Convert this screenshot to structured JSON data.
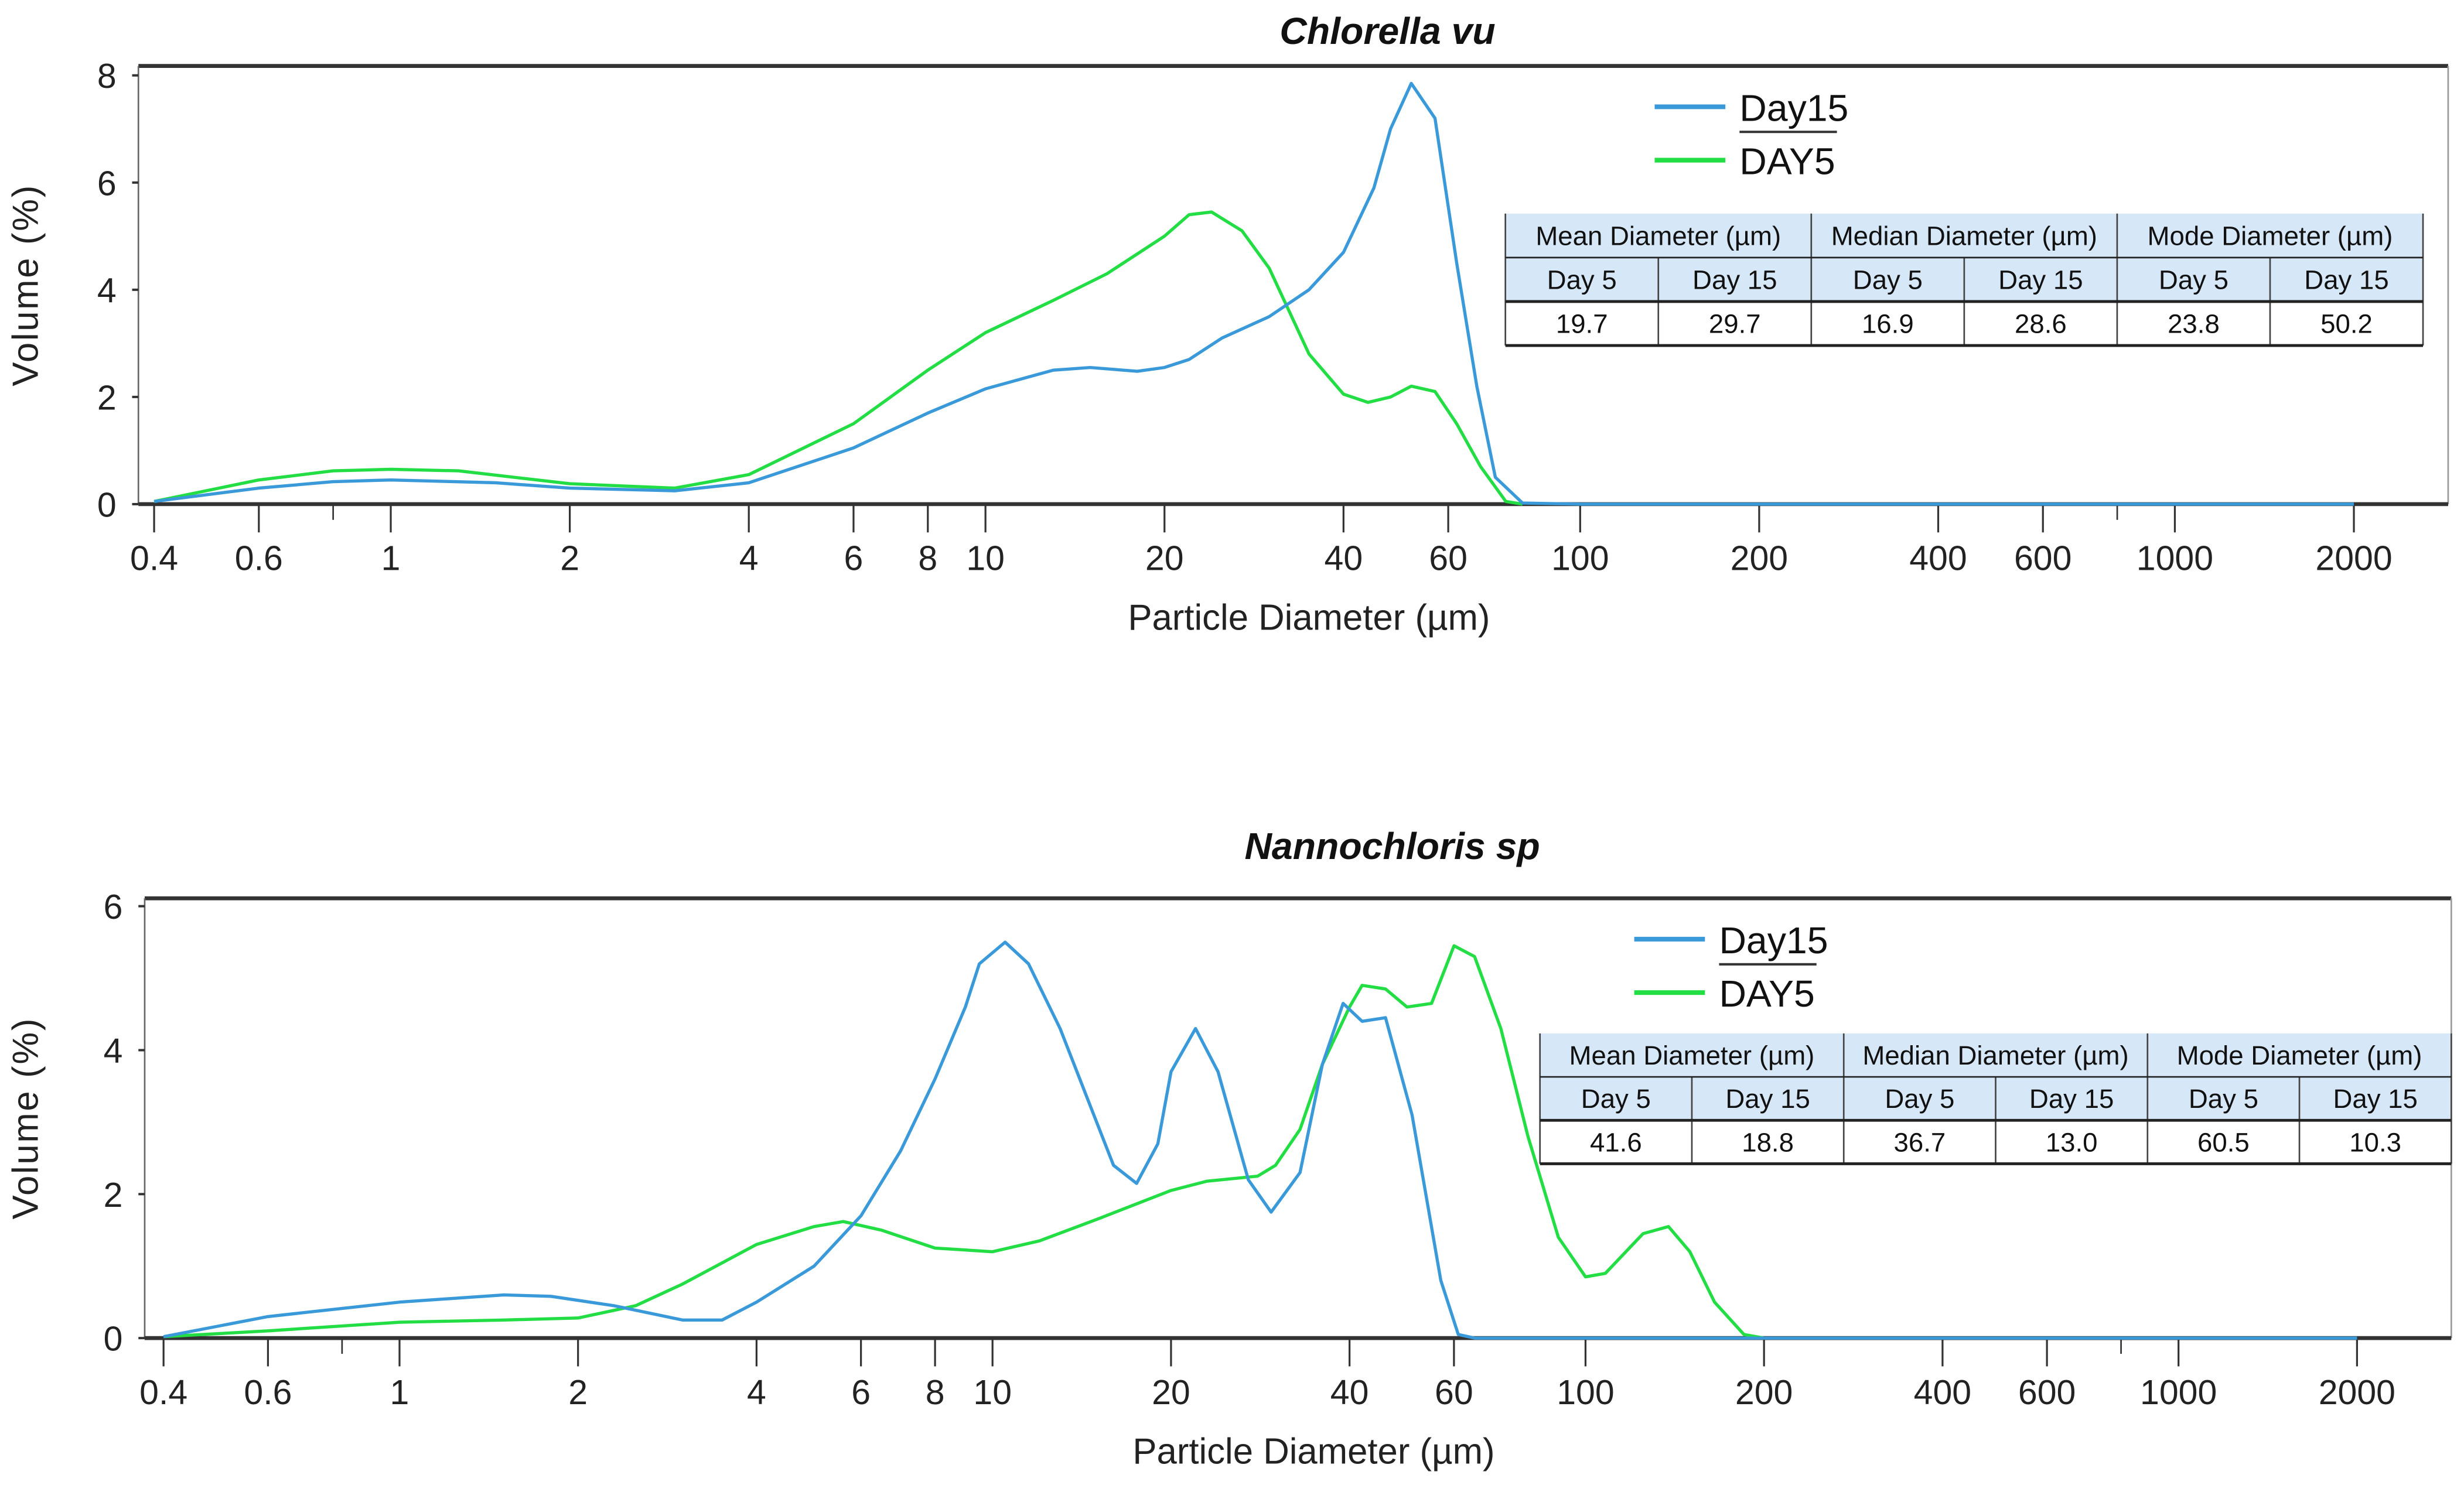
{
  "colors": {
    "day15": "#3a9ad9",
    "day5": "#22dd44",
    "table_header_bg": "#d6e8f7",
    "axis": "#333333"
  },
  "chart_data": [
    {
      "type": "line",
      "title": "Chlorella vu",
      "xlabel": "Particle Diameter (µm)",
      "ylabel": "Volume (%)",
      "xscale": "log",
      "xlim": [
        0.4,
        2000
      ],
      "ylim": [
        0,
        8
      ],
      "xticks": [
        "0.4",
        "0.6",
        "1",
        "2",
        "4",
        "6",
        "8",
        "10",
        "20",
        "40",
        "60",
        "100",
        "200",
        "400",
        "600",
        "1000",
        "2000"
      ],
      "yticks": [
        "0",
        "2",
        "4",
        "6",
        "8"
      ],
      "grid": false,
      "legend": "top-right",
      "series": [
        {
          "name": "Day15",
          "color": "#3a9ad9",
          "x": [
            0.4,
            0.6,
            0.8,
            1,
            1.5,
            2,
            3,
            4,
            6,
            8,
            10,
            13,
            15,
            18,
            20,
            22,
            25,
            30,
            35,
            40,
            45,
            48,
            52,
            57,
            62,
            67,
            72,
            80,
            100,
            2000
          ],
          "y": [
            0.05,
            0.3,
            0.42,
            0.45,
            0.4,
            0.3,
            0.25,
            0.4,
            1.05,
            1.7,
            2.15,
            2.5,
            2.55,
            2.48,
            2.55,
            2.7,
            3.1,
            3.5,
            4.0,
            4.7,
            5.9,
            7.0,
            7.85,
            7.2,
            4.5,
            2.2,
            0.5,
            0.02,
            0,
            0
          ]
        },
        {
          "name": "DAY5",
          "color": "#22dd44",
          "x": [
            0.4,
            0.6,
            0.8,
            1,
            1.3,
            2,
            3,
            4,
            6,
            8,
            10,
            13,
            16,
            20,
            22,
            24,
            27,
            30,
            35,
            40,
            44,
            48,
            52,
            57,
            62,
            68,
            75,
            80
          ],
          "y": [
            0.05,
            0.45,
            0.62,
            0.65,
            0.62,
            0.38,
            0.3,
            0.55,
            1.5,
            2.5,
            3.2,
            3.8,
            4.3,
            5.0,
            5.4,
            5.45,
            5.1,
            4.4,
            2.8,
            2.05,
            1.9,
            2.0,
            2.2,
            2.1,
            1.5,
            0.7,
            0.05,
            0
          ]
        }
      ],
      "table": {
        "headers": [
          "Mean Diameter (µm)",
          "Median Diameter (µm)",
          "Mode Diameter (µm)"
        ],
        "subheaders": [
          "Day 5",
          "Day 15",
          "Day 5",
          "Day 15",
          "Day 5",
          "Day 15"
        ],
        "values": [
          "19.7",
          "29.7",
          "16.9",
          "28.6",
          "23.8",
          "50.2"
        ]
      }
    },
    {
      "type": "line",
      "title": "Nannochloris sp",
      "xlabel": "Particle Diameter (µm)",
      "ylabel": "Volume (%)",
      "xscale": "log",
      "xlim": [
        0.4,
        2000
      ],
      "ylim": [
        0,
        6
      ],
      "xticks": [
        "0.4",
        "0.6",
        "1",
        "2",
        "4",
        "6",
        "8",
        "10",
        "20",
        "40",
        "60",
        "100",
        "200",
        "400",
        "600",
        "1000",
        "2000"
      ],
      "yticks": [
        "0",
        "2",
        "4",
        "6"
      ],
      "grid": false,
      "legend": "top-right",
      "series": [
        {
          "name": "Day15",
          "color": "#3a9ad9",
          "x": [
            0.4,
            0.6,
            1,
            1.5,
            1.8,
            2.3,
            3,
            3.5,
            4,
            5,
            6,
            7,
            8,
            9,
            9.5,
            10.5,
            11.5,
            13,
            14.5,
            16,
            17.5,
            19,
            20,
            22,
            24,
            27,
            29.5,
            33,
            36,
            39,
            42,
            46,
            51,
            57,
            61,
            65,
            2000
          ],
          "y": [
            0.02,
            0.3,
            0.5,
            0.6,
            0.58,
            0.45,
            0.25,
            0.25,
            0.5,
            1.0,
            1.7,
            2.6,
            3.6,
            4.6,
            5.2,
            5.5,
            5.2,
            4.3,
            3.3,
            2.4,
            2.15,
            2.7,
            3.7,
            4.3,
            3.7,
            2.2,
            1.75,
            2.3,
            3.8,
            4.65,
            4.4,
            4.45,
            3.1,
            0.8,
            0.05,
            0,
            0
          ]
        },
        {
          "name": "DAY5",
          "color": "#22dd44",
          "x": [
            0.4,
            0.6,
            1,
            1.5,
            2,
            2.5,
            3,
            4,
            5,
            5.6,
            6.5,
            8,
            10,
            12,
            15,
            20,
            23,
            28,
            30,
            33,
            36,
            40,
            42,
            46,
            50,
            55,
            60,
            65,
            72,
            80,
            90,
            100,
            108,
            125,
            138,
            150,
            165,
            185,
            200
          ],
          "y": [
            0.02,
            0.1,
            0.22,
            0.25,
            0.28,
            0.45,
            0.75,
            1.3,
            1.55,
            1.62,
            1.5,
            1.25,
            1.2,
            1.35,
            1.65,
            2.05,
            2.18,
            2.25,
            2.4,
            2.9,
            3.8,
            4.6,
            4.9,
            4.85,
            4.6,
            4.65,
            5.45,
            5.3,
            4.3,
            2.8,
            1.4,
            0.85,
            0.9,
            1.45,
            1.55,
            1.2,
            0.5,
            0.05,
            0
          ]
        }
      ],
      "table": {
        "headers": [
          "Mean Diameter (µm)",
          "Median Diameter (µm)",
          "Mode Diameter (µm)"
        ],
        "subheaders": [
          "Day 5",
          "Day 15",
          "Day 5",
          "Day 15",
          "Day 5",
          "Day 15"
        ],
        "values": [
          "41.6",
          "18.8",
          "36.7",
          "13.0",
          "60.5",
          "10.3"
        ]
      }
    }
  ]
}
